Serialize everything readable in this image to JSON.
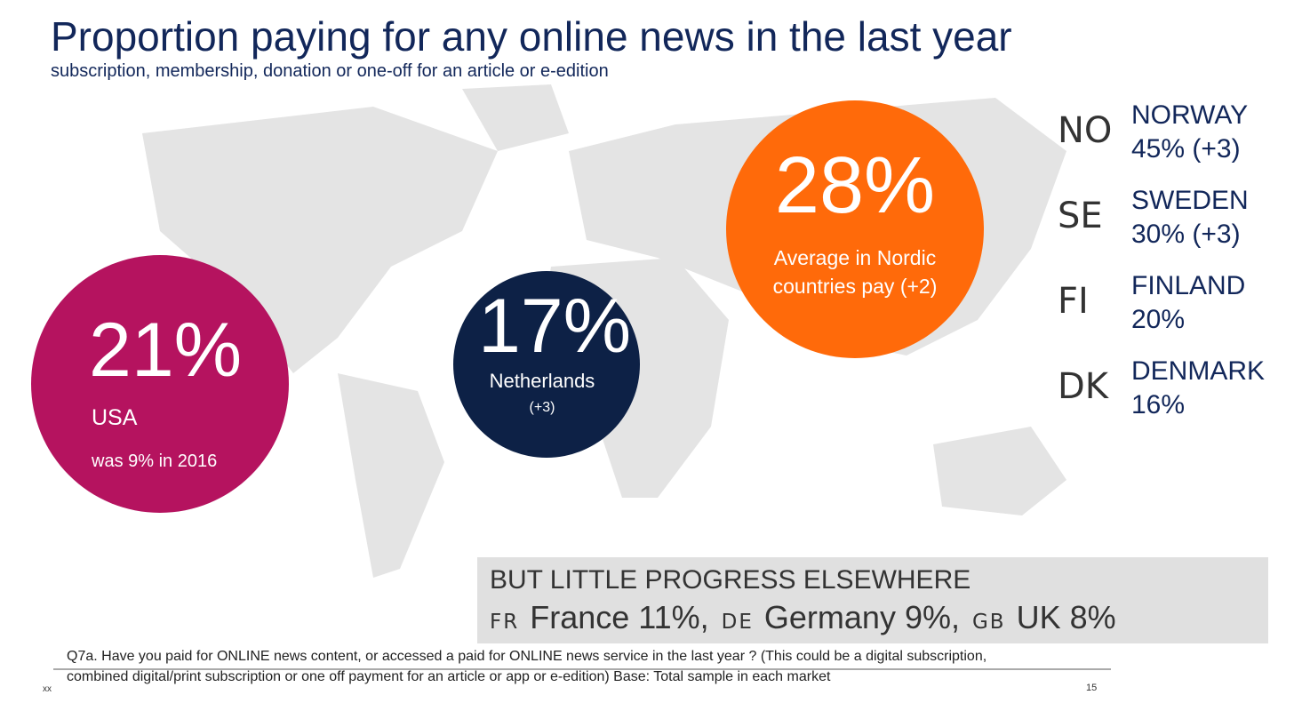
{
  "header": {
    "title": "Proportion paying for any online news in the last year",
    "subtitle": "subscription, membership, donation or one-off for an article or e-edition"
  },
  "usa": {
    "value": "21%",
    "label": "USA",
    "note": "was 9% in 2016"
  },
  "netherlands": {
    "value": "17%",
    "label": "Netherlands",
    "note": "(+3)"
  },
  "nordic": {
    "value": "28%",
    "lines": [
      "Average in Nordic",
      "countries pay (+2)"
    ]
  },
  "countries": [
    {
      "code": "NO",
      "name": "NORWAY",
      "value": "45% (+3)"
    },
    {
      "code": "SE",
      "name": "SWEDEN",
      "value": "30% (+3)"
    },
    {
      "code": "FI",
      "name": "FINLAND",
      "value": "20%"
    },
    {
      "code": "DK",
      "name": "DENMARK",
      "value": "16%"
    }
  ],
  "elsewhere": {
    "heading": "BUT LITTLE PROGRESS ELSEWHERE",
    "items": [
      {
        "code": "FR",
        "text": "France 11%,"
      },
      {
        "code": "DE",
        "text": "Germany 9%,"
      },
      {
        "code": "GB",
        "text": "UK 8%"
      }
    ]
  },
  "footnote": {
    "lines": [
      "Q7a. Have you paid for ONLINE news content, or accessed a paid for ONLINE news service in the last year ? (This could be a digital subscription,",
      "combined digital/print subscription or one off payment for an article or app or e-edition) Base: Total sample in each market"
    ],
    "left": "xx",
    "page": "15"
  }
}
